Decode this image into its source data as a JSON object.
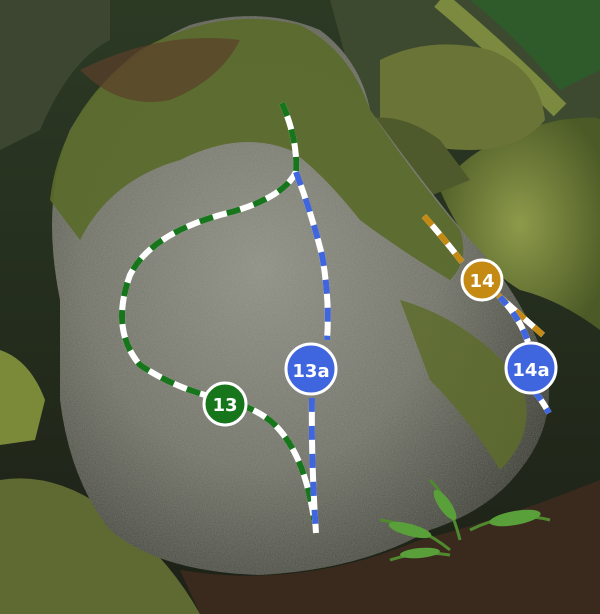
{
  "routes": [
    {
      "label": "13",
      "color": "#17761c"
    },
    {
      "label": "13a",
      "color": "#3f66df"
    },
    {
      "label": "14",
      "color": "#c48a14"
    },
    {
      "label": "14a",
      "color": "#3f66df"
    }
  ]
}
